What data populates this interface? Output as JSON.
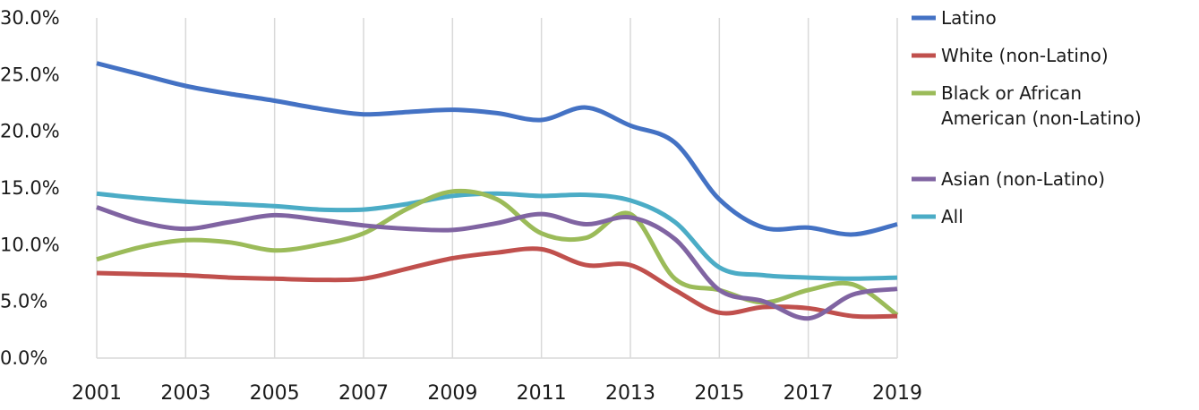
{
  "chart_data": {
    "type": "line",
    "title": "",
    "xlabel": "",
    "ylabel": "",
    "ylim": [
      0,
      30
    ],
    "xlim": [
      2001,
      2019
    ],
    "grid": "vertical",
    "legend_position": "right",
    "y_ticks": [
      "0.0%",
      "5.0%",
      "10.0%",
      "15.0%",
      "20.0%",
      "25.0%",
      "30.0%"
    ],
    "y_tick_values": [
      0,
      5,
      10,
      15,
      20,
      25,
      30
    ],
    "x_ticks": [
      "2001",
      "2003",
      "2005",
      "2007",
      "2009",
      "2011",
      "2013",
      "2015",
      "2017",
      "2019"
    ],
    "x_tick_values": [
      2001,
      2003,
      2005,
      2007,
      2009,
      2011,
      2013,
      2015,
      2017,
      2019
    ],
    "x": [
      2001,
      2002,
      2003,
      2004,
      2005,
      2006,
      2007,
      2008,
      2009,
      2010,
      2011,
      2012,
      2013,
      2014,
      2015,
      2016,
      2017,
      2018,
      2019
    ],
    "series": [
      {
        "name": "Latino",
        "legend_lines": [
          "Latino"
        ],
        "color": "#4472c4",
        "values": [
          26.0,
          25.0,
          24.0,
          23.3,
          22.7,
          22.0,
          21.5,
          21.7,
          21.9,
          21.6,
          21.0,
          22.1,
          20.5,
          19.0,
          14.0,
          11.5,
          11.5,
          10.9,
          11.8
        ]
      },
      {
        "name": "White (non-Latino)",
        "legend_lines": [
          "White (non-Latino)"
        ],
        "color": "#c0504d",
        "values": [
          7.5,
          7.4,
          7.3,
          7.1,
          7.0,
          6.9,
          7.0,
          7.9,
          8.8,
          9.3,
          9.6,
          8.2,
          8.2,
          6.0,
          4.0,
          4.5,
          4.4,
          3.7,
          3.7
        ]
      },
      {
        "name": "Black or African American (non-Latino)",
        "legend_lines": [
          "Black or African",
          "American (non-Latino)"
        ],
        "color": "#9bbb59",
        "values": [
          8.7,
          9.8,
          10.4,
          10.2,
          9.5,
          10.0,
          11.0,
          13.2,
          14.7,
          14.0,
          11.0,
          10.6,
          12.7,
          7.0,
          6.0,
          4.9,
          6.0,
          6.5,
          3.8
        ]
      },
      {
        "name": "Asian (non-Latino)",
        "legend_lines": [
          "Asian (non-Latino)"
        ],
        "color": "#8064a2",
        "values": [
          13.3,
          12.0,
          11.4,
          12.0,
          12.6,
          12.2,
          11.7,
          11.4,
          11.3,
          11.9,
          12.7,
          11.8,
          12.4,
          10.5,
          6.0,
          5.0,
          3.5,
          5.6,
          6.1
        ]
      },
      {
        "name": "All",
        "legend_lines": [
          "All"
        ],
        "color": "#4bacc6",
        "values": [
          14.5,
          14.1,
          13.8,
          13.6,
          13.4,
          13.1,
          13.1,
          13.6,
          14.3,
          14.5,
          14.3,
          14.4,
          13.9,
          12.0,
          8.0,
          7.3,
          7.1,
          7.0,
          7.1
        ]
      }
    ]
  }
}
